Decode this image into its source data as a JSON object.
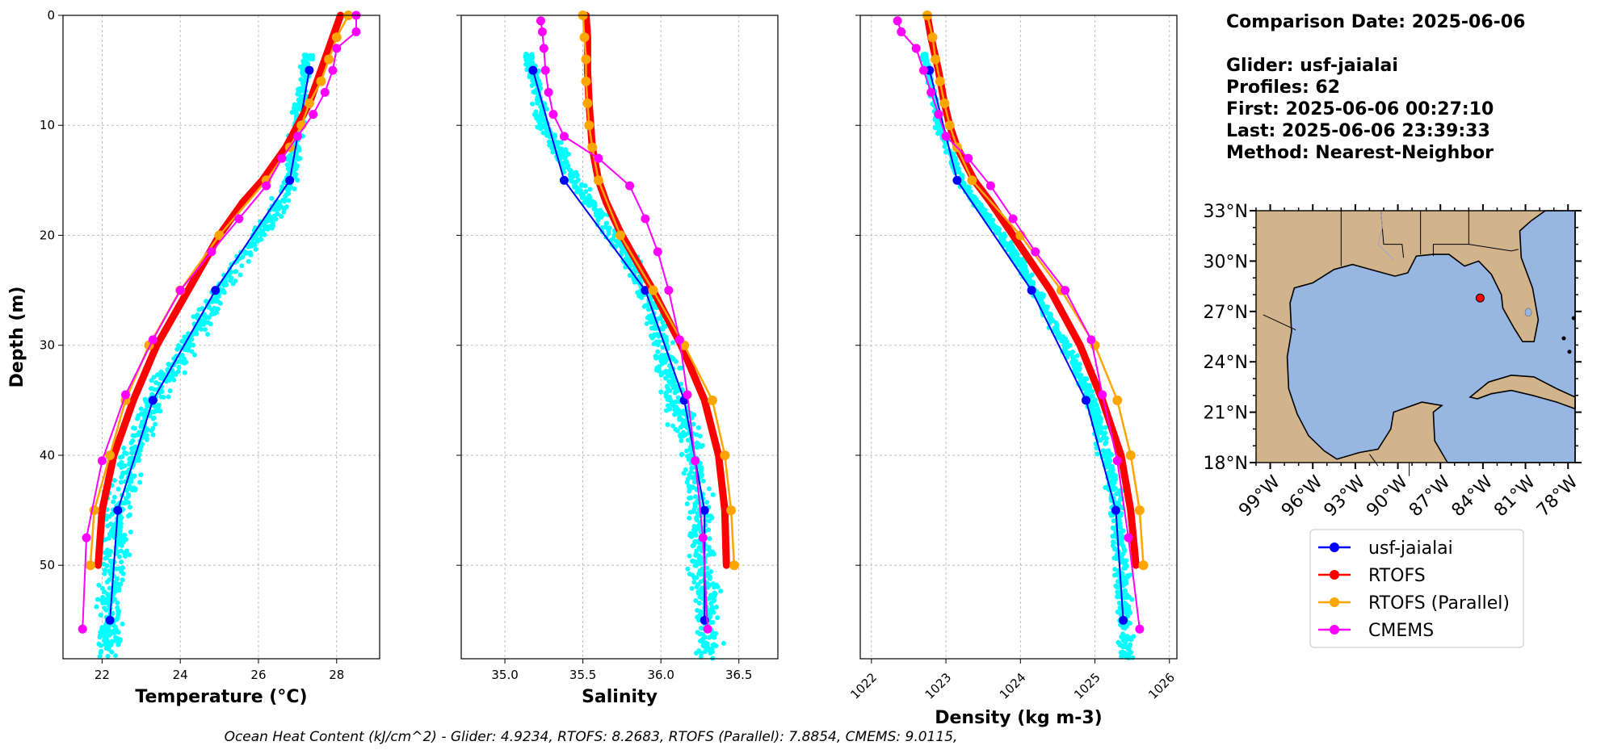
{
  "info": {
    "comparison_date": "Comparison Date: 2025-06-06",
    "glider": "Glider: usf-jaialai",
    "profiles": "Profiles: 62",
    "first": "First: 2025-06-06 00:27:10",
    "last": "Last: 2025-06-06 23:39:33",
    "method": "Method: Nearest-Neighbor"
  },
  "footer": "Ocean Heat Content (kJ/cm^2) - Glider: 4.9234,  RTOFS: 8.2683,  RTOFS (Parallel): 7.8854,  CMEMS: 9.0115,",
  "colors": {
    "glider_scatter": "#00ffff",
    "glider": "#0000ff",
    "rtofs": "#ff0000",
    "rtofs_parallel": "#ffa500",
    "cmems": "#ff00ff",
    "ocean": "#97b6e1",
    "land": "#d2b48c"
  },
  "chart_data": [
    {
      "type": "line",
      "xlabel": "Temperature (°C)",
      "ylabel": "Depth (m)",
      "xlim": [
        21.0,
        29.1
      ],
      "ylim": [
        58.5,
        0
      ],
      "xticks": [
        22,
        24,
        26,
        28
      ],
      "yticks": [
        0,
        10,
        20,
        30,
        40,
        50
      ],
      "grid": true,
      "scatter": {
        "name": "glider profiles",
        "spread": 0.35,
        "center_depth": [
          3.5,
          5,
          10,
          15,
          18,
          21,
          25,
          30,
          35,
          40,
          45,
          50,
          55,
          58.5
        ],
        "center_x": [
          27.3,
          27.2,
          27.0,
          26.8,
          26.4,
          25.8,
          25.0,
          24.2,
          23.3,
          22.8,
          22.4,
          22.3,
          22.2,
          22.1
        ]
      },
      "series": [
        {
          "name": "usf-jaialai",
          "color": "#0000ff",
          "depth": [
            5,
            15,
            25,
            35,
            45,
            55
          ],
          "values": [
            27.3,
            26.8,
            24.9,
            23.3,
            22.4,
            22.2
          ]
        },
        {
          "name": "RTOFS",
          "color": "#ff0000",
          "depth": [
            0,
            2,
            5,
            8,
            10,
            12,
            15,
            17,
            20,
            25,
            30,
            35,
            40,
            45,
            50
          ],
          "values": [
            28.1,
            27.9,
            27.6,
            27.3,
            27.0,
            26.7,
            26.1,
            25.6,
            25.0,
            24.2,
            23.4,
            22.8,
            22.3,
            22.0,
            21.9
          ]
        },
        {
          "name": "RTOFS (Parallel)",
          "color": "#ffa500",
          "depth": [
            0,
            2,
            4,
            6,
            8,
            10,
            12,
            15,
            20,
            25,
            30,
            35,
            40,
            45,
            50
          ],
          "values": [
            28.3,
            28.0,
            27.8,
            27.6,
            27.3,
            27.1,
            26.8,
            26.2,
            25.0,
            24.0,
            23.2,
            22.6,
            22.2,
            21.8,
            21.7
          ]
        },
        {
          "name": "CMEMS",
          "color": "#ff00ff",
          "depth": [
            0,
            1.5,
            3,
            5,
            7,
            9,
            11,
            13,
            15.5,
            18.5,
            21.5,
            25,
            29.5,
            34.5,
            40.5,
            47.5,
            55.8
          ],
          "values": [
            28.5,
            28.5,
            28.0,
            27.9,
            27.7,
            27.4,
            27.0,
            26.6,
            26.2,
            25.5,
            24.8,
            24.0,
            23.3,
            22.6,
            22.0,
            21.6,
            21.5
          ]
        }
      ]
    },
    {
      "type": "line",
      "xlabel": "Salinity",
      "xlim": [
        34.72,
        36.75
      ],
      "ylim": [
        58.5,
        0
      ],
      "xticks": [
        35.0,
        35.5,
        36.0,
        36.5
      ],
      "xtick_labels": [
        "35.0",
        "35.5",
        "36.0",
        "36.5"
      ],
      "grid": true,
      "scatter": {
        "name": "glider profiles",
        "spread": 0.09,
        "center_depth": [
          3.5,
          5,
          10,
          15,
          18,
          21,
          25,
          30,
          35,
          40,
          45,
          50,
          55,
          58.5
        ],
        "center_x": [
          35.15,
          35.18,
          35.25,
          35.45,
          35.6,
          35.75,
          35.9,
          36.0,
          36.1,
          36.2,
          36.25,
          36.28,
          36.3,
          36.3
        ]
      },
      "series": [
        {
          "name": "usf-jaialai",
          "color": "#0000ff",
          "depth": [
            5,
            15,
            25,
            35,
            45,
            55
          ],
          "values": [
            35.18,
            35.38,
            35.9,
            36.15,
            36.28,
            36.28
          ]
        },
        {
          "name": "RTOFS",
          "color": "#ff0000",
          "depth": [
            0,
            2,
            5,
            8,
            10,
            12,
            15,
            17,
            20,
            25,
            30,
            35,
            40,
            45,
            50
          ],
          "values": [
            35.52,
            35.53,
            35.53,
            35.54,
            35.55,
            35.56,
            35.6,
            35.65,
            35.75,
            35.95,
            36.13,
            36.28,
            36.37,
            36.41,
            36.42
          ]
        },
        {
          "name": "RTOFS (Parallel)",
          "color": "#ffa500",
          "depth": [
            0,
            2,
            4,
            6,
            8,
            10,
            12,
            15,
            20,
            25,
            30,
            35,
            40,
            45,
            50
          ],
          "values": [
            35.5,
            35.51,
            35.52,
            35.52,
            35.53,
            35.54,
            35.56,
            35.6,
            35.74,
            35.95,
            36.15,
            36.33,
            36.41,
            36.45,
            36.47
          ]
        },
        {
          "name": "CMEMS",
          "color": "#ff00ff",
          "depth": [
            0.5,
            1.5,
            3,
            5,
            7,
            9,
            11,
            13,
            15.5,
            18.5,
            21.5,
            25,
            29.5,
            34.5,
            40.5,
            47.5,
            55.8
          ],
          "values": [
            35.23,
            35.24,
            35.25,
            35.26,
            35.28,
            35.31,
            35.38,
            35.6,
            35.8,
            35.9,
            35.98,
            36.05,
            36.12,
            36.17,
            36.22,
            36.27,
            36.3
          ]
        }
      ]
    },
    {
      "type": "line",
      "xlabel": "Density (kg m-3)",
      "xlim": [
        1021.85,
        1026.1
      ],
      "ylim": [
        58.5,
        0
      ],
      "xticks": [
        1022,
        1023,
        1024,
        1025,
        1026
      ],
      "xtick_labels": [
        "1022",
        "1023",
        "1024",
        "1025",
        "1026"
      ],
      "grid": true,
      "scatter": {
        "name": "glider profiles",
        "spread": 0.1,
        "center_depth": [
          3.5,
          5,
          10,
          15,
          18,
          21,
          25,
          30,
          35,
          40,
          45,
          50,
          55,
          58.5
        ],
        "center_x": [
          1022.7,
          1022.75,
          1022.9,
          1023.2,
          1023.5,
          1023.85,
          1024.2,
          1024.6,
          1024.95,
          1025.15,
          1025.3,
          1025.35,
          1025.4,
          1025.42
        ]
      },
      "series": [
        {
          "name": "usf-jaialai",
          "color": "#0000ff",
          "depth": [
            5,
            15,
            25,
            35,
            45,
            55
          ],
          "values": [
            1022.78,
            1023.15,
            1024.15,
            1024.88,
            1025.28,
            1025.38
          ]
        },
        {
          "name": "RTOFS",
          "color": "#ff0000",
          "depth": [
            0,
            2,
            5,
            8,
            10,
            12,
            15,
            17,
            20,
            25,
            30,
            35,
            40,
            45,
            50
          ],
          "values": [
            1022.75,
            1022.8,
            1022.9,
            1022.98,
            1023.05,
            1023.15,
            1023.38,
            1023.6,
            1023.9,
            1024.4,
            1024.8,
            1025.1,
            1025.35,
            1025.48,
            1025.55
          ]
        },
        {
          "name": "RTOFS (Parallel)",
          "color": "#ffa500",
          "depth": [
            0,
            2,
            4,
            6,
            8,
            10,
            12,
            15,
            20,
            25,
            30,
            35,
            40,
            45,
            50
          ],
          "values": [
            1022.75,
            1022.82,
            1022.86,
            1022.92,
            1022.98,
            1023.05,
            1023.15,
            1023.35,
            1024.0,
            1024.55,
            1025.0,
            1025.3,
            1025.48,
            1025.6,
            1025.65
          ]
        },
        {
          "name": "CMEMS",
          "color": "#ff00ff",
          "depth": [
            0.5,
            1.5,
            3,
            5,
            7,
            9,
            11,
            13,
            15.5,
            18.5,
            21.5,
            25,
            29.5,
            34.5,
            40.5,
            47.5,
            55.8
          ],
          "values": [
            1022.35,
            1022.4,
            1022.6,
            1022.7,
            1022.8,
            1022.9,
            1023.0,
            1023.3,
            1023.6,
            1023.9,
            1024.2,
            1024.6,
            1024.95,
            1025.1,
            1025.3,
            1025.45,
            1025.6
          ]
        }
      ]
    },
    {
      "type": "map",
      "lon_range": [
        -100,
        -77.5
      ],
      "lat_range": [
        18,
        33
      ],
      "xtick_labels": [
        "99°W",
        "96°W",
        "93°W",
        "90°W",
        "87°W",
        "84°W",
        "81°W",
        "78°W"
      ],
      "xtick_values": [
        -99,
        -96,
        -93,
        -90,
        -87,
        -84,
        -81,
        -78
      ],
      "ytick_labels": [
        "33°N",
        "30°N",
        "27°N",
        "24°N",
        "21°N",
        "18°N"
      ],
      "ytick_values": [
        33,
        30,
        27,
        24,
        21,
        18
      ],
      "glider_location": {
        "lon": -84.2,
        "lat": 27.8
      }
    }
  ],
  "legend": [
    {
      "label": "usf-jaialai",
      "color": "#0000ff"
    },
    {
      "label": "RTOFS",
      "color": "#ff0000"
    },
    {
      "label": "RTOFS (Parallel)",
      "color": "#ffa500"
    },
    {
      "label": "CMEMS",
      "color": "#ff00ff"
    }
  ]
}
